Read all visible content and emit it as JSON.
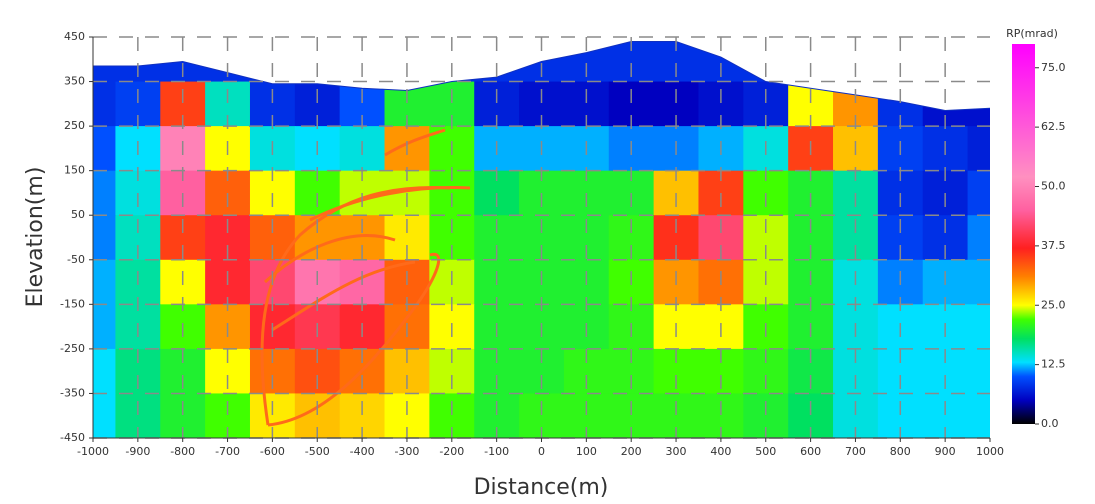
{
  "chart_data": {
    "type": "contour",
    "xlabel": "Distance(m)",
    "ylabel": "Elevation(m)",
    "colorbar_label": "RP(mrad)",
    "xlim": [
      -1000,
      1000
    ],
    "ylim": [
      -450,
      450
    ],
    "xticks": [
      -1000,
      -900,
      -800,
      -700,
      -600,
      -500,
      -400,
      -300,
      -200,
      -100,
      0,
      100,
      200,
      300,
      400,
      500,
      600,
      700,
      800,
      900,
      1000
    ],
    "yticks": [
      450,
      350,
      250,
      150,
      50,
      -50,
      -150,
      -250,
      -350,
      -450
    ],
    "grid": true,
    "clim": [
      0,
      80
    ],
    "cticks": [
      {
        "value": 0,
        "label": "0.0"
      },
      {
        "value": 12.5,
        "label": "12.5"
      },
      {
        "value": 25,
        "label": "25.0"
      },
      {
        "value": 37.5,
        "label": "37.5"
      },
      {
        "value": 50,
        "label": "50.0"
      },
      {
        "value": 62.5,
        "label": "62.5"
      },
      {
        "value": 75,
        "label": "75.0"
      }
    ],
    "colorscale": [
      [
        0,
        "#000000"
      ],
      [
        5,
        "#0000c0"
      ],
      [
        10,
        "#0050ff"
      ],
      [
        13,
        "#00e0ff"
      ],
      [
        18,
        "#00e060"
      ],
      [
        22,
        "#40ff00"
      ],
      [
        25,
        "#ffff00"
      ],
      [
        31,
        "#ff8000"
      ],
      [
        37,
        "#ff2020"
      ],
      [
        45,
        "#ff60a0"
      ],
      [
        52,
        "#ff90c0"
      ],
      [
        80,
        "#ff00ff"
      ]
    ],
    "x": [
      -1000,
      -900,
      -800,
      -700,
      -600,
      -500,
      -400,
      -300,
      -200,
      -100,
      0,
      100,
      200,
      300,
      400,
      500,
      600,
      700,
      800,
      900,
      1000
    ],
    "y": [
      400,
      300,
      200,
      100,
      0,
      -100,
      -200,
      -300,
      -400
    ],
    "surface": [
      385,
      385,
      395,
      370,
      345,
      345,
      335,
      330,
      350,
      360,
      395,
      415,
      440,
      440,
      405,
      350,
      335,
      320,
      305,
      285,
      290
    ],
    "z": [
      [
        8,
        8,
        8,
        8,
        8,
        8,
        8,
        8,
        8,
        8,
        8,
        8,
        8,
        8,
        8,
        8,
        8,
        8,
        8,
        8,
        8
      ],
      [
        8,
        9,
        35,
        15,
        8,
        7,
        10,
        20,
        20,
        7,
        6,
        6,
        5,
        5,
        6,
        7,
        25,
        30,
        8,
        6,
        6
      ],
      [
        10,
        13,
        50,
        25,
        14,
        13,
        14,
        30,
        22,
        12,
        12,
        12,
        11,
        11,
        12,
        14,
        35,
        28,
        9,
        8,
        7
      ],
      [
        11,
        14,
        45,
        33,
        25,
        22,
        24,
        24,
        22,
        18,
        20,
        20,
        20,
        28,
        35,
        22,
        20,
        16,
        8,
        7,
        9
      ],
      [
        11,
        15,
        35,
        38,
        33,
        30,
        30,
        26,
        22,
        20,
        20,
        20,
        21,
        36,
        42,
        24,
        20,
        16,
        9,
        8,
        11
      ],
      [
        12,
        16,
        25,
        38,
        42,
        48,
        46,
        33,
        24,
        20,
        20,
        20,
        22,
        30,
        32,
        24,
        20,
        14,
        11,
        12,
        12
      ],
      [
        12,
        16,
        22,
        30,
        38,
        40,
        38,
        32,
        25,
        20,
        20,
        20,
        21,
        25,
        25,
        22,
        20,
        14,
        13,
        13,
        13
      ],
      [
        13,
        17,
        20,
        25,
        32,
        34,
        32,
        28,
        24,
        20,
        20,
        21,
        21,
        22,
        22,
        21,
        19,
        14,
        13,
        13,
        13
      ],
      [
        13,
        17,
        20,
        22,
        26,
        28,
        27,
        25,
        22,
        20,
        21,
        21,
        21,
        21,
        21,
        20,
        18,
        14,
        13,
        13,
        13
      ]
    ]
  }
}
